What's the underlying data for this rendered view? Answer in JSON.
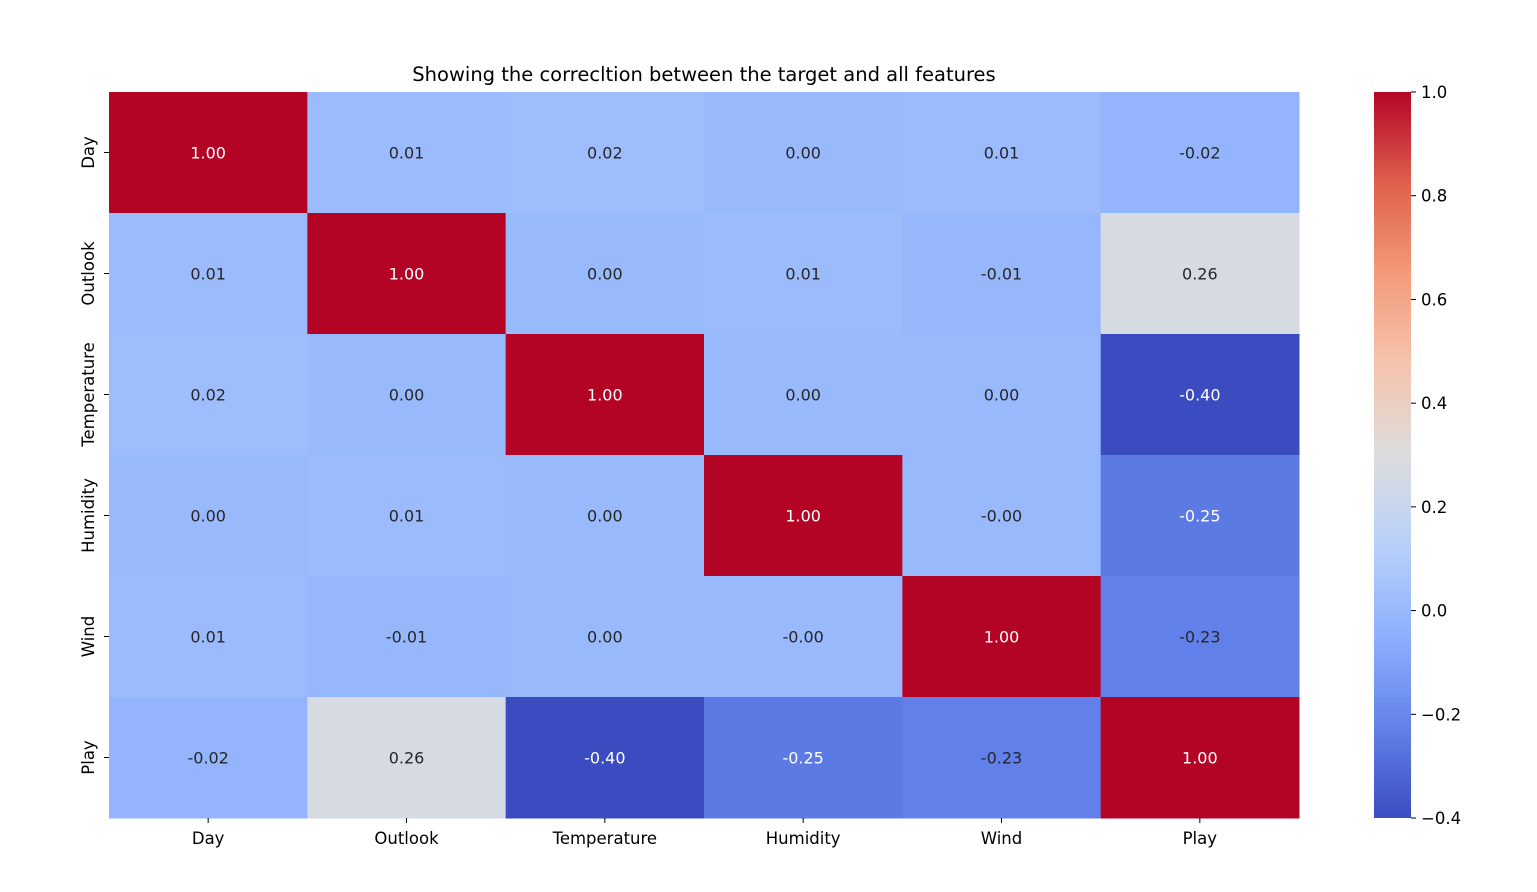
{
  "chart_data": {
    "type": "heatmap",
    "title": "Showing the correcltion between the target and all features",
    "rows": [
      "Day",
      "Outlook",
      "Temperature",
      "Humidity",
      "Wind",
      "Play"
    ],
    "columns": [
      "Day",
      "Outlook",
      "Temperature",
      "Humidity",
      "Wind",
      "Play"
    ],
    "values": [
      [
        1.0,
        0.01,
        0.02,
        0.0,
        0.01,
        -0.02
      ],
      [
        0.01,
        1.0,
        0.0,
        0.01,
        -0.01,
        0.26
      ],
      [
        0.02,
        0.0,
        1.0,
        0.0,
        0.0,
        -0.4
      ],
      [
        0.0,
        0.01,
        0.0,
        1.0,
        -0.0,
        -0.25
      ],
      [
        0.01,
        -0.01,
        0.0,
        -0.0,
        1.0,
        -0.23
      ],
      [
        -0.02,
        0.26,
        -0.4,
        -0.25,
        -0.23,
        1.0
      ]
    ],
    "labels": [
      [
        "1.00",
        "0.01",
        "0.02",
        "0.00",
        "0.01",
        "-0.02"
      ],
      [
        "0.01",
        "1.00",
        "0.00",
        "0.01",
        "-0.01",
        "0.26"
      ],
      [
        "0.02",
        "0.00",
        "1.00",
        "0.00",
        "0.00",
        "-0.40"
      ],
      [
        "0.00",
        "0.01",
        "0.00",
        "1.00",
        "-0.00",
        "-0.25"
      ],
      [
        "0.01",
        "-0.01",
        "0.00",
        "-0.00",
        "1.00",
        "-0.23"
      ],
      [
        "-0.02",
        "0.26",
        "-0.40",
        "-0.25",
        "-0.23",
        "1.00"
      ]
    ],
    "colormap": "coolwarm",
    "colorbar": {
      "range": [
        -0.4,
        1.0
      ],
      "ticks": [
        -0.4,
        -0.2,
        0.0,
        0.2,
        0.4,
        0.6,
        0.8,
        1.0
      ],
      "tick_labels": [
        "−0.4",
        "−0.2",
        "0.0",
        "0.2",
        "0.4",
        "0.6",
        "0.8",
        "1.0"
      ],
      "low_color": "#3b4cc0",
      "mid_color": "#dddddd",
      "high_color": "#b40426"
    },
    "legend_position": "right"
  }
}
